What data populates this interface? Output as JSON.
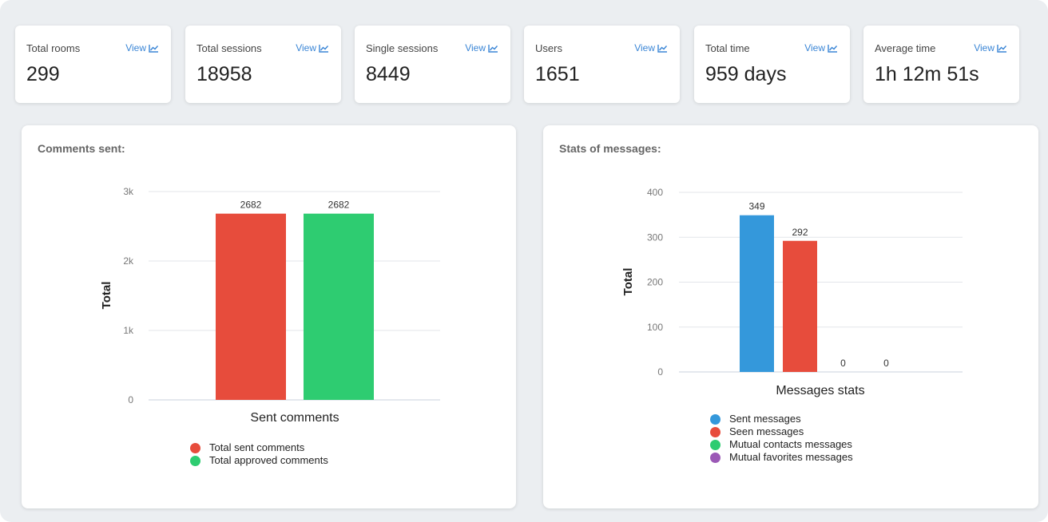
{
  "stats": [
    {
      "label": "Total rooms",
      "value": "299",
      "view": "View"
    },
    {
      "label": "Total sessions",
      "value": "18958",
      "view": "View"
    },
    {
      "label": "Single sessions",
      "value": "8449",
      "view": "View"
    },
    {
      "label": "Users",
      "value": "1651",
      "view": "View"
    },
    {
      "label": "Total time",
      "value": "959 days",
      "view": "View"
    },
    {
      "label": "Average time",
      "value": "1h 12m 51s",
      "view": "View"
    }
  ],
  "chart_data": [
    {
      "type": "bar",
      "title": "Comments sent:",
      "xlabel": "Sent comments",
      "ylabel": "Total",
      "categories": [
        "Sent comments"
      ],
      "ylim": [
        0,
        3000
      ],
      "yticks": [
        "0",
        "1k",
        "2k",
        "3k"
      ],
      "grid": true,
      "legend_position": "bottom",
      "series": [
        {
          "name": "Total sent comments",
          "values": [
            2682
          ],
          "color": "#e74c3c"
        },
        {
          "name": "Total approved comments",
          "values": [
            2682
          ],
          "color": "#2ecc71"
        }
      ]
    },
    {
      "type": "bar",
      "title": "Stats of messages:",
      "xlabel": "Messages stats",
      "ylabel": "Total",
      "categories": [
        "Messages stats"
      ],
      "ylim": [
        0,
        400
      ],
      "yticks": [
        "0",
        "100",
        "200",
        "300",
        "400"
      ],
      "grid": true,
      "legend_position": "bottom",
      "series": [
        {
          "name": "Sent messages",
          "values": [
            349
          ],
          "color": "#3498db"
        },
        {
          "name": "Seen messages",
          "values": [
            292
          ],
          "color": "#e74c3c"
        },
        {
          "name": "Mutual contacts messages",
          "values": [
            0
          ],
          "color": "#2ecc71"
        },
        {
          "name": "Mutual favorites messages",
          "values": [
            0
          ],
          "color": "#9b59b6"
        }
      ]
    }
  ]
}
